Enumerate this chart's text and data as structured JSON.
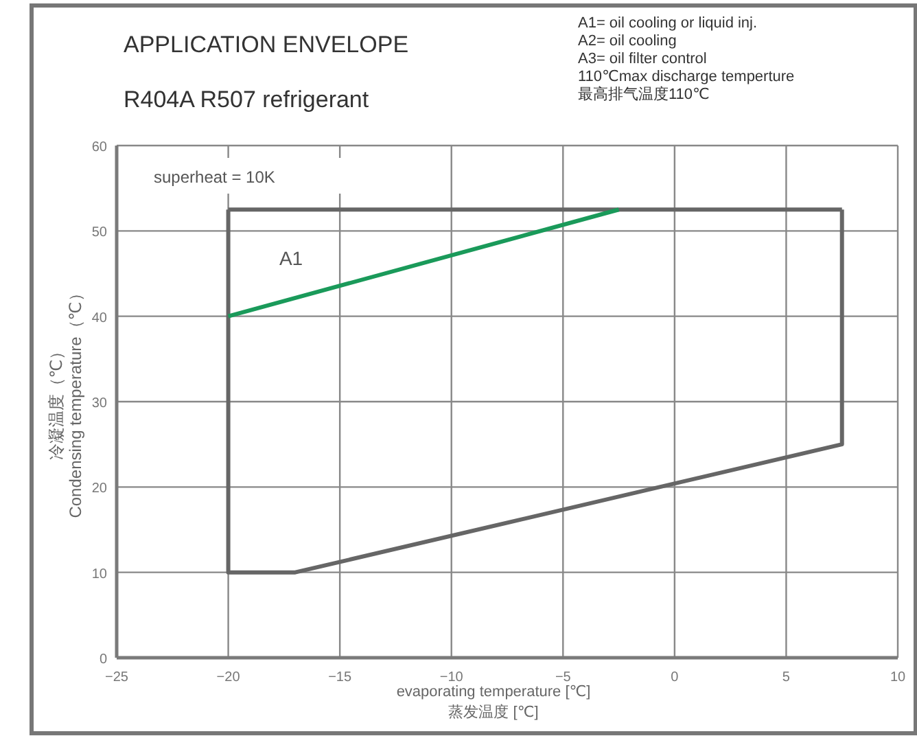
{
  "chart_data": {
    "type": "line",
    "title": "APPLICATION ENVELOPE",
    "subtitle": "R404A R507   refrigerant",
    "xlabel": "evaporating temperature [℃]\n蒸发温度 [℃]",
    "ylabel": "冷凝温度（℃）\nCondensing temperature（℃）",
    "annotations": [
      "A1=  oil cooling or liquid inj.",
      "A2=  oil cooling",
      "A3=  oil filter control",
      "110℃max discharge temperture",
      "最高排气温度110℃",
      "superheat = 10K",
      "A1"
    ],
    "series": [
      {
        "color": "#666666",
        "x": [
          -20,
          -20,
          -17,
          7.5,
          7.5
        ],
        "values": [
          52.5,
          10,
          10,
          25,
          52.5
        ]
      },
      {
        "color": "#666666",
        "x": [
          -20,
          7.5
        ],
        "values": [
          52.5,
          52.5
        ]
      },
      {
        "color": "#1a9a5a",
        "x": [
          -20,
          -2.5
        ],
        "values": [
          40,
          52.5
        ]
      }
    ],
    "xlim": [
      -25,
      10
    ],
    "xticks": [
      -25,
      -20,
      -15,
      -10,
      -5,
      0,
      5,
      10
    ],
    "ylim": [
      0,
      60
    ],
    "yticks": [
      0,
      10,
      20,
      30,
      40,
      50,
      60
    ],
    "grid": true,
    "marker": "none",
    "line_style": "solid"
  }
}
